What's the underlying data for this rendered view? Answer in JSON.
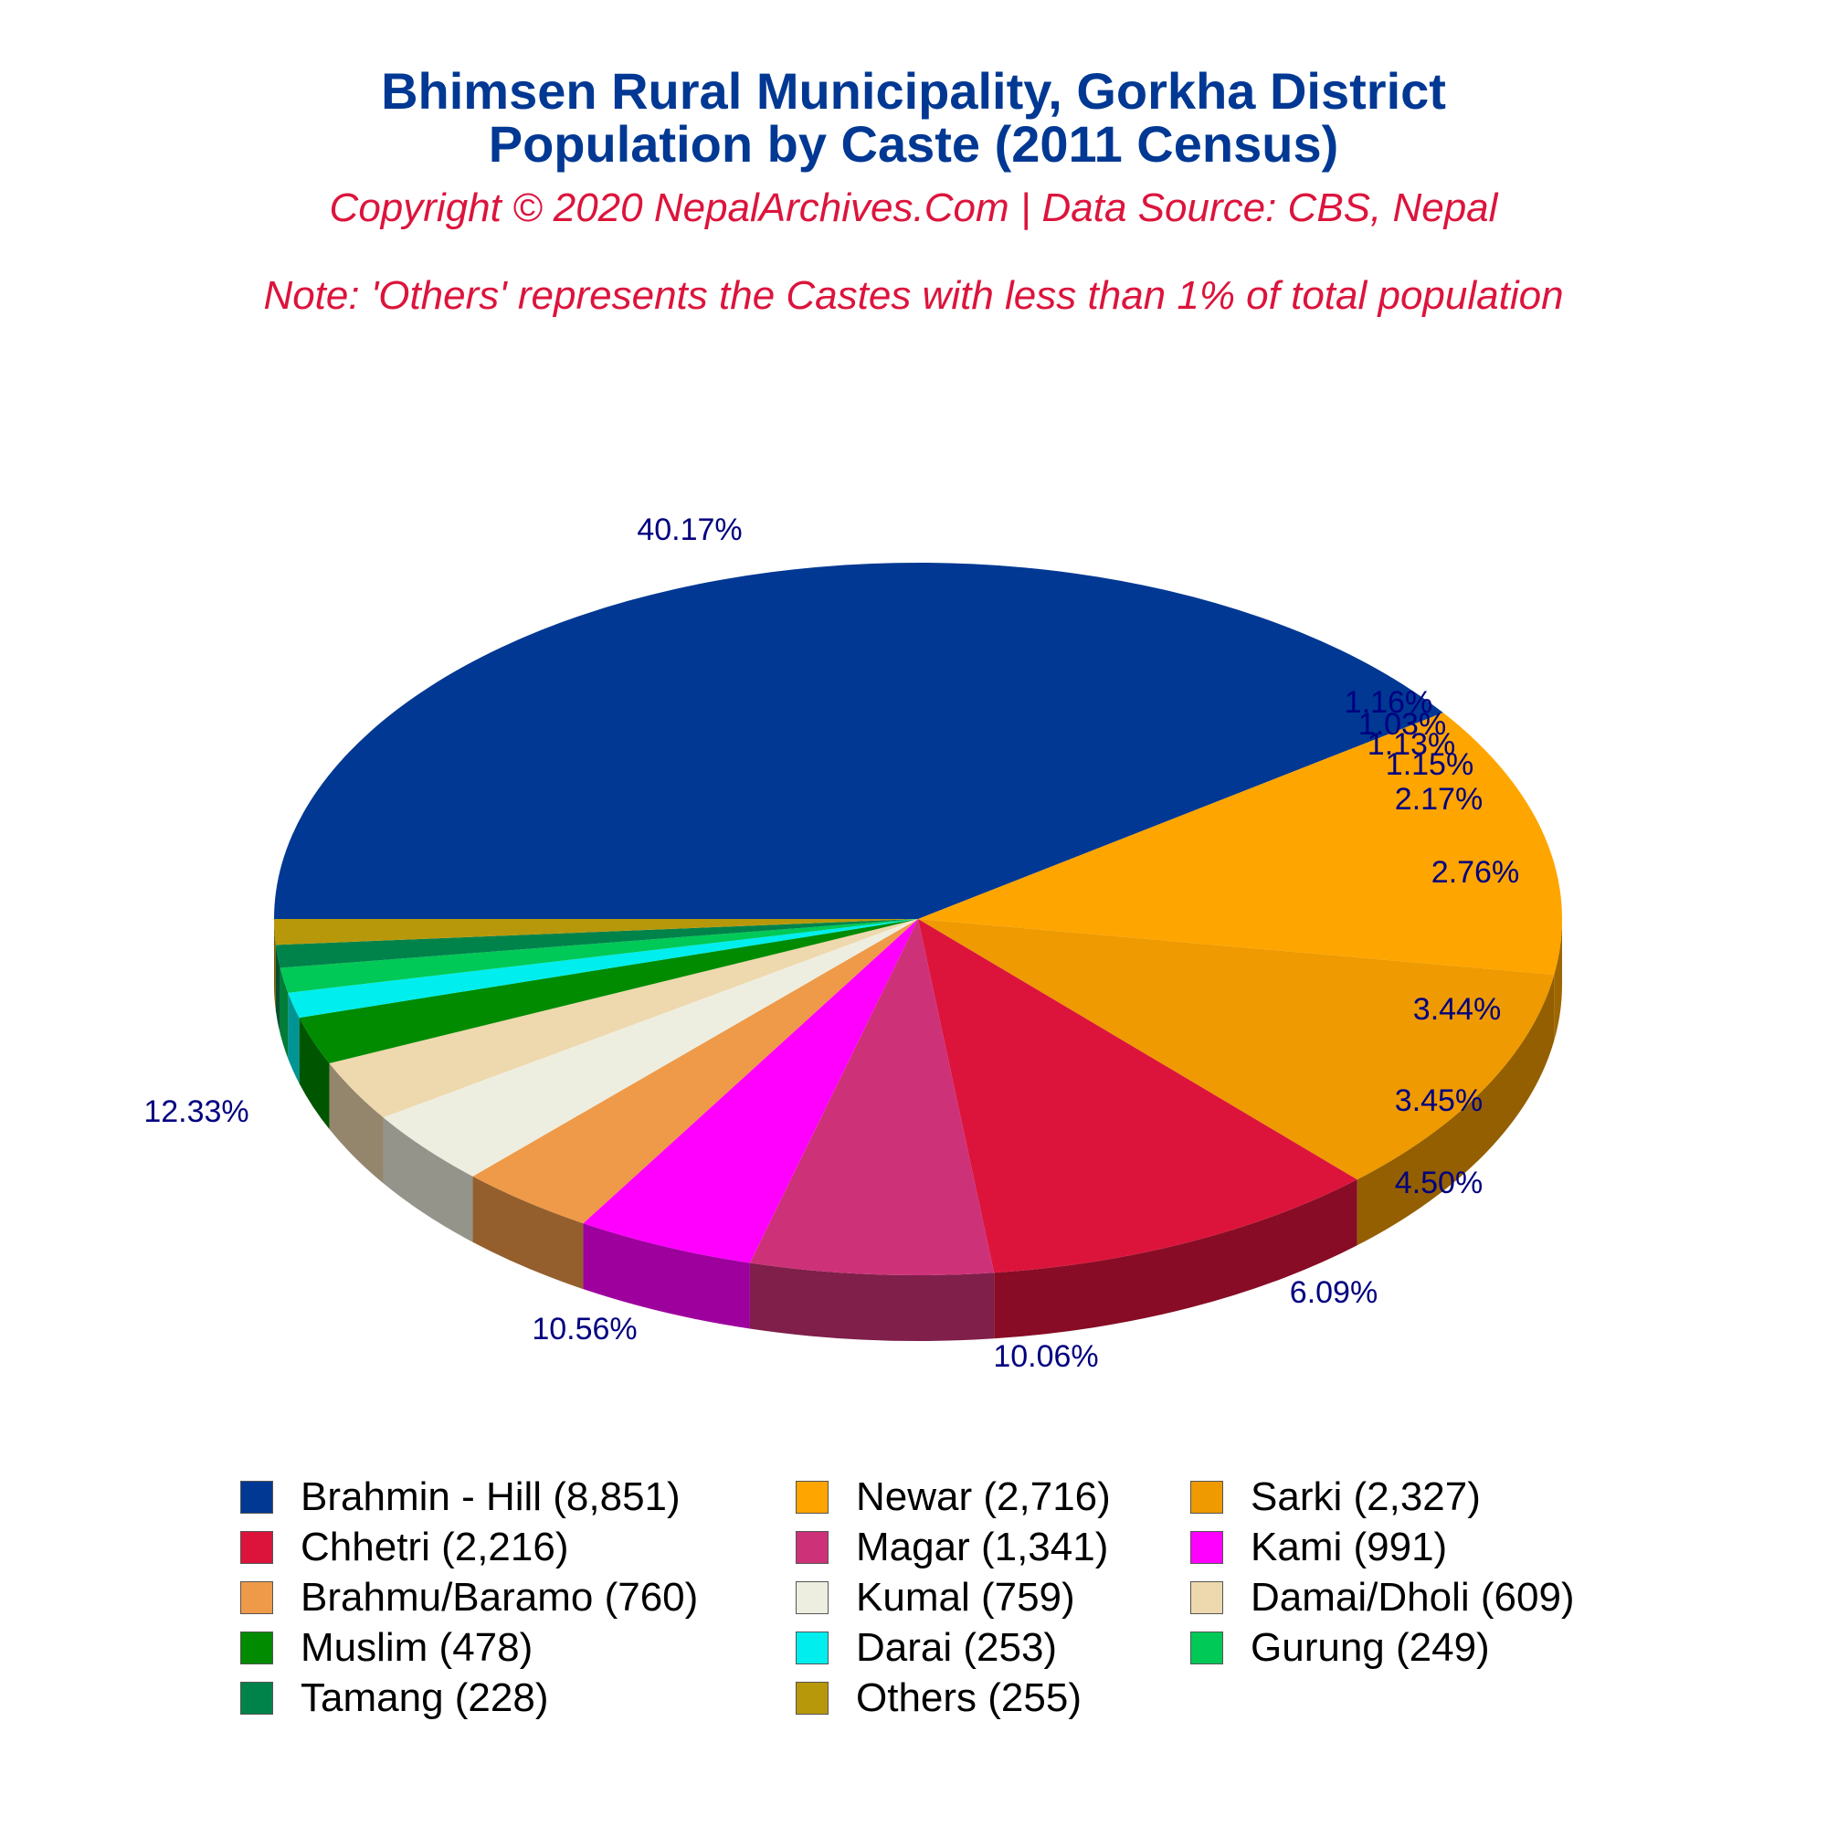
{
  "chart_data": {
    "type": "pie",
    "title": [
      "Bhimsen Rural Municipality, Gorkha District",
      "Population by Caste (2011 Census)"
    ],
    "subtitle": "Copyright © 2020 NepalArchives.Com | Data Source: CBS, Nepal",
    "note": "Note: 'Others' represents the Castes with less than 1% of total population",
    "legend_position": "bottom",
    "slices": [
      {
        "name": "Brahmin - Hill",
        "value": 8851,
        "percent": 40.17,
        "color": "#003893",
        "legend": "Brahmin - Hill (8,851)",
        "label": "40.17%"
      },
      {
        "name": "Newar",
        "value": 2716,
        "percent": 12.33,
        "color": "#FFA500",
        "legend": "Newar (2,716)",
        "label": "12.33%"
      },
      {
        "name": "Sarki",
        "value": 2327,
        "percent": 10.56,
        "color": "#EE9A00",
        "legend": "Sarki (2,327)",
        "label": "10.56%"
      },
      {
        "name": "Chhetri",
        "value": 2216,
        "percent": 10.06,
        "color": "#DC143C",
        "legend": "Chhetri (2,216)",
        "label": "10.06%"
      },
      {
        "name": "Magar",
        "value": 1341,
        "percent": 6.09,
        "color": "#CD3278",
        "legend": "Magar (1,341)",
        "label": "6.09%"
      },
      {
        "name": "Kami",
        "value": 991,
        "percent": 4.5,
        "color": "#FF00FF",
        "legend": "Kami (991)",
        "label": "4.50%"
      },
      {
        "name": "Brahmu/Baramo",
        "value": 760,
        "percent": 3.45,
        "color": "#EE9A49",
        "legend": "Brahmu/Baramo (760)",
        "label": "3.45%"
      },
      {
        "name": "Kumal",
        "value": 759,
        "percent": 3.44,
        "color": "#EEEEE0",
        "legend": "Kumal (759)",
        "label": "3.44%"
      },
      {
        "name": "Damai/Dholi",
        "value": 609,
        "percent": 2.76,
        "color": "#EED8AE",
        "legend": "Damai/Dholi (609)",
        "label": "2.76%"
      },
      {
        "name": "Muslim",
        "value": 478,
        "percent": 2.17,
        "color": "#008B00",
        "legend": "Muslim (478)",
        "label": "2.17%"
      },
      {
        "name": "Darai",
        "value": 253,
        "percent": 1.15,
        "color": "#00EEEE",
        "legend": "Darai (253)",
        "label": "1.15%"
      },
      {
        "name": "Gurung",
        "value": 249,
        "percent": 1.13,
        "color": "#00C957",
        "legend": "Gurung (249)",
        "label": "1.13%"
      },
      {
        "name": "Tamang",
        "value": 228,
        "percent": 1.03,
        "color": "#00834A",
        "legend": "Tamang (228)",
        "label": "1.03%"
      },
      {
        "name": "Others",
        "value": 255,
        "percent": 1.16,
        "color": "#B8980B",
        "legend": "Others (255)",
        "label": "1.16%"
      }
    ]
  }
}
